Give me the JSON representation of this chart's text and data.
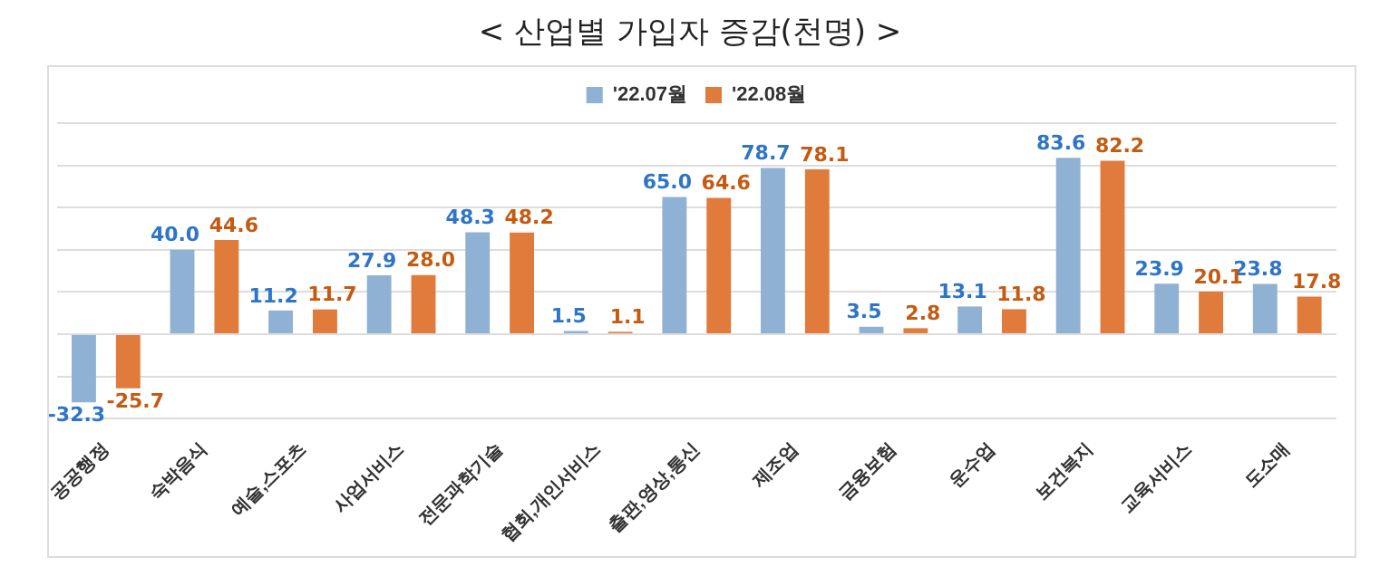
{
  "chart_data": {
    "type": "bar",
    "title": "< 산업별 가입자 증감(천명) >",
    "categories": [
      "공공행정",
      "숙박음식",
      "예술,스포츠",
      "사업서비스",
      "전문과학기술",
      "협회,개인서비스",
      "출판,영상,통신",
      "제조업",
      "금융보험",
      "운수업",
      "보건복지",
      "교육서비스",
      "도소매"
    ],
    "series": [
      {
        "name": "'22.07월",
        "color": "#8fb1d3",
        "values": [
          -32.3,
          40.0,
          11.2,
          27.9,
          48.3,
          1.5,
          65.0,
          78.7,
          3.5,
          13.1,
          83.6,
          23.9,
          23.8
        ],
        "value_labels": [
          "-32.3",
          "40.0",
          "11.2",
          "27.9",
          "48.3",
          "1.5",
          "65.0",
          "78.7",
          "3.5",
          "13.1",
          "83.6",
          "23.9",
          "23.8"
        ]
      },
      {
        "name": "'22.08월",
        "color": "#e07b3c",
        "values": [
          -25.7,
          44.6,
          11.7,
          28.0,
          48.2,
          1.1,
          64.6,
          78.1,
          2.8,
          11.8,
          82.2,
          20.1,
          17.8
        ],
        "value_labels": [
          "-25.7",
          "44.6",
          "11.7",
          "28.0",
          "48.2",
          "1.1",
          "64.6",
          "78.1",
          "2.8",
          "11.8",
          "82.2",
          "20.1",
          "17.8"
        ]
      }
    ],
    "ylim": [
      -40,
      100
    ],
    "yticks": [
      {
        "value": -40,
        "label": null
      },
      {
        "value": -20,
        "label": null
      },
      {
        "value": 0,
        "label": null
      },
      {
        "value": 20,
        "label": null
      },
      {
        "value": 40,
        "label": null
      },
      {
        "value": 60,
        "label": null
      },
      {
        "value": 80,
        "label": null
      },
      {
        "value": 100,
        "label": null
      }
    ],
    "grid": "y",
    "legend": "top",
    "tick_labels": "x"
  }
}
